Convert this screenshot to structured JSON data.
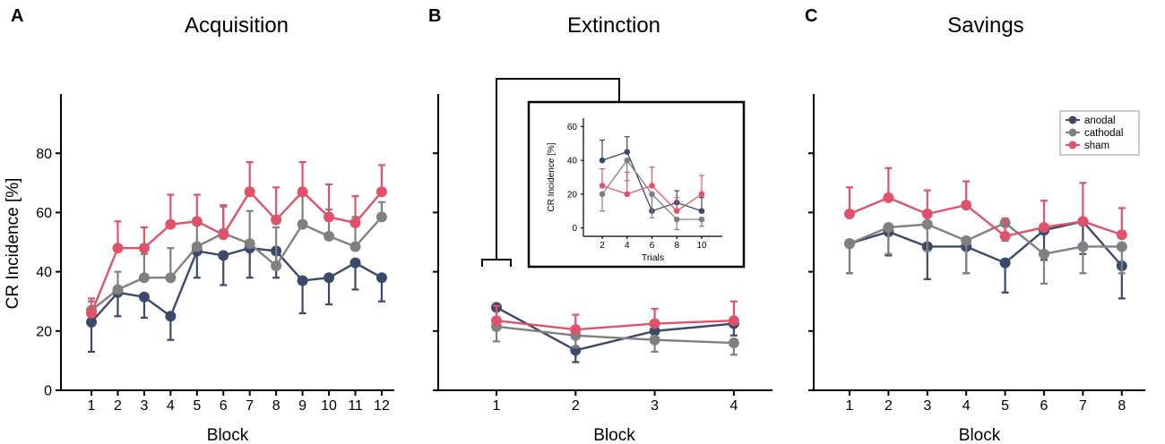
{
  "shared": {
    "ylabel": "CR Incidence [%]",
    "yticks": [
      0,
      20,
      40,
      60,
      80
    ],
    "ylim": [
      0,
      100
    ],
    "colors": {
      "anodal": "#3b4a6b",
      "cathodal": "#808080",
      "sham": "#e0526a"
    }
  },
  "legend": {
    "items": [
      "anodal",
      "cathodal",
      "sham"
    ]
  },
  "chart_data": [
    {
      "panel": "A",
      "type": "line",
      "title": "Acquisition",
      "xlabel": "Block",
      "ylabel": "CR Incidence [%]",
      "ylim": [
        0,
        100
      ],
      "categories": [
        "1",
        "2",
        "3",
        "4",
        "5",
        "6",
        "7",
        "8",
        "9",
        "10",
        "11",
        "12"
      ],
      "series": [
        {
          "name": "anodal",
          "values": [
            23,
            33,
            31.5,
            25,
            47,
            45.5,
            48,
            47,
            37,
            38,
            43,
            38
          ],
          "errors": [
            10,
            8,
            7,
            8,
            9,
            10,
            10,
            9,
            11,
            9,
            9,
            8
          ]
        },
        {
          "name": "cathodal",
          "values": [
            27,
            34,
            38,
            38,
            48.5,
            53,
            49.5,
            42,
            56,
            52,
            48.5,
            58.5
          ],
          "errors": [
            3,
            6,
            8,
            10,
            9,
            9,
            11,
            13,
            10,
            9,
            10,
            5
          ]
        },
        {
          "name": "sham",
          "values": [
            26,
            48,
            48,
            56,
            57,
            52.5,
            67,
            57.5,
            67,
            58.5,
            56.5,
            67
          ],
          "errors": [
            5,
            9,
            7,
            10,
            9,
            10,
            10,
            11,
            10,
            11,
            9,
            9
          ]
        }
      ]
    },
    {
      "panel": "B",
      "type": "line",
      "title": "Extinction",
      "xlabel": "Block",
      "ylabel": "CR Incidence [%]",
      "ylim": [
        0,
        100
      ],
      "categories": [
        "1",
        "2",
        "3",
        "4"
      ],
      "series": [
        {
          "name": "anodal",
          "values": [
            28,
            13.5,
            20,
            22.5
          ],
          "errors": [
            1,
            4,
            4,
            4
          ]
        },
        {
          "name": "cathodal",
          "values": [
            21.5,
            18.5,
            17,
            16
          ],
          "errors": [
            5,
            4,
            4,
            4
          ]
        },
        {
          "name": "sham",
          "values": [
            23.5,
            20.5,
            22.5,
            23.5
          ],
          "errors": [
            5,
            5,
            5,
            6.5
          ]
        }
      ]
    },
    {
      "panel": "B-inset",
      "type": "line",
      "title": "",
      "xlabel": "Trials",
      "ylabel": "CR Incidence [%]",
      "ylim": [
        -5,
        65
      ],
      "x": [
        2,
        4,
        6,
        8,
        10
      ],
      "xticks": [
        2,
        4,
        6,
        8,
        10
      ],
      "yticks": [
        0,
        20,
        40,
        60
      ],
      "series": [
        {
          "name": "anodal",
          "values": [
            40,
            45,
            10,
            15,
            10
          ],
          "errors": [
            12,
            9,
            10,
            7,
            8
          ]
        },
        {
          "name": "cathodal",
          "values": [
            20,
            40,
            20,
            5,
            5
          ],
          "errors": [
            10,
            12,
            14,
            6,
            4
          ]
        },
        {
          "name": "sham",
          "values": [
            25,
            20,
            25,
            10,
            20
          ],
          "errors": [
            10,
            13,
            11,
            8,
            11
          ]
        }
      ]
    },
    {
      "panel": "C",
      "type": "line",
      "title": "Savings",
      "xlabel": "Block",
      "ylabel": "CR Incidence [%]",
      "ylim": [
        0,
        100
      ],
      "categories": [
        "1",
        "2",
        "3",
        "4",
        "5",
        "6",
        "7",
        "8"
      ],
      "series": [
        {
          "name": "anodal",
          "values": [
            49.5,
            53.5,
            48.5,
            48.5,
            43,
            54,
            57,
            42
          ],
          "errors": [
            10,
            8,
            11,
            9,
            10,
            10,
            11,
            11
          ]
        },
        {
          "name": "cathodal",
          "values": [
            49.5,
            55,
            56,
            50.5,
            56.5,
            46,
            48.5,
            48.5
          ],
          "errors": [
            10,
            9,
            9,
            11,
            6,
            10,
            9,
            9
          ]
        },
        {
          "name": "sham",
          "values": [
            59.5,
            65,
            59.5,
            62.5,
            52,
            55,
            57,
            52.5
          ],
          "errors": [
            9,
            10,
            8,
            8,
            6,
            9,
            13,
            9
          ]
        }
      ]
    }
  ]
}
